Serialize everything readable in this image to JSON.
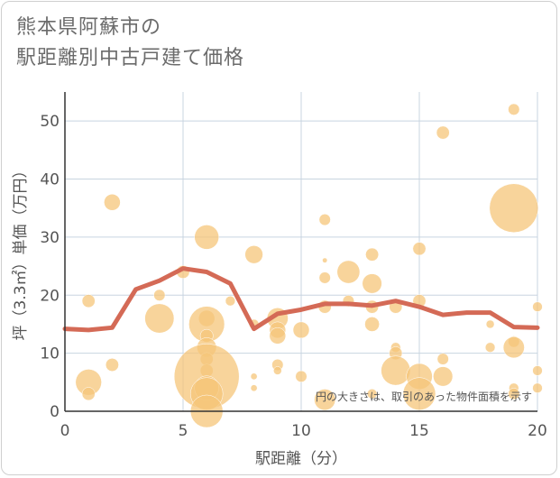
{
  "title_line1": "熊本県阿蘇市の",
  "title_line2": "駅距離別中古戸建て価格",
  "chart_data": {
    "type": "scatter",
    "title": "熊本県阿蘇市の駅距離別中古戸建て価格",
    "xlabel": "駅距離（分）",
    "ylabel": "坪（3.3㎡）単価（万円）",
    "xlim": [
      0,
      20
    ],
    "ylim": [
      0,
      55
    ],
    "xticks": [
      0,
      5,
      10,
      15,
      20
    ],
    "yticks": [
      0,
      10,
      20,
      30,
      40,
      50
    ],
    "grid": true,
    "annotation": "円の大きさは、取引のあった物件面積を示す",
    "colors": {
      "bubble": "#f5c57a",
      "line": "#d46a56",
      "grid": "#c8d4e0",
      "axis": "#333333"
    },
    "bubbles": [
      {
        "x": 1,
        "y": 19,
        "s": 0.8
      },
      {
        "x": 1,
        "y": 5,
        "s": 1.6
      },
      {
        "x": 1,
        "y": 3,
        "s": 0.8
      },
      {
        "x": 2,
        "y": 36,
        "s": 1.0
      },
      {
        "x": 2,
        "y": 8,
        "s": 0.8
      },
      {
        "x": 4,
        "y": 20,
        "s": 0.7
      },
      {
        "x": 4,
        "y": 16,
        "s": 1.8
      },
      {
        "x": 5,
        "y": 24,
        "s": 0.8
      },
      {
        "x": 6,
        "y": 30,
        "s": 1.5
      },
      {
        "x": 6,
        "y": 16,
        "s": 1.0
      },
      {
        "x": 6,
        "y": 15,
        "s": 2.2
      },
      {
        "x": 6,
        "y": 13,
        "s": 0.8
      },
      {
        "x": 6,
        "y": 11,
        "s": 1.2
      },
      {
        "x": 6,
        "y": 9,
        "s": 0.8
      },
      {
        "x": 6,
        "y": 7,
        "s": 0.8
      },
      {
        "x": 6,
        "y": 6,
        "s": 4.0
      },
      {
        "x": 6,
        "y": 4,
        "s": 1.5
      },
      {
        "x": 6,
        "y": 3,
        "s": 2.0
      },
      {
        "x": 6,
        "y": 0,
        "s": 2.0
      },
      {
        "x": 7,
        "y": 19,
        "s": 0.6
      },
      {
        "x": 8,
        "y": 27,
        "s": 1.1
      },
      {
        "x": 8,
        "y": 15,
        "s": 0.6
      },
      {
        "x": 8,
        "y": 6,
        "s": 0.4
      },
      {
        "x": 8,
        "y": 4,
        "s": 0.4
      },
      {
        "x": 9,
        "y": 16,
        "s": 1.3
      },
      {
        "x": 9,
        "y": 14,
        "s": 1.0
      },
      {
        "x": 9,
        "y": 13,
        "s": 1.0
      },
      {
        "x": 9,
        "y": 8,
        "s": 0.7
      },
      {
        "x": 9,
        "y": 7,
        "s": 0.5
      },
      {
        "x": 10,
        "y": 14,
        "s": 1.0
      },
      {
        "x": 10,
        "y": 6,
        "s": 0.7
      },
      {
        "x": 11,
        "y": 33,
        "s": 0.7
      },
      {
        "x": 11,
        "y": 26,
        "s": 0.3
      },
      {
        "x": 11,
        "y": 23,
        "s": 0.7
      },
      {
        "x": 11,
        "y": 18,
        "s": 0.8
      },
      {
        "x": 11,
        "y": 2,
        "s": 1.3
      },
      {
        "x": 12,
        "y": 24,
        "s": 1.4
      },
      {
        "x": 12,
        "y": 19,
        "s": 0.7
      },
      {
        "x": 13,
        "y": 27,
        "s": 0.8
      },
      {
        "x": 13,
        "y": 22,
        "s": 1.2
      },
      {
        "x": 13,
        "y": 18,
        "s": 0.8
      },
      {
        "x": 13,
        "y": 15,
        "s": 0.9
      },
      {
        "x": 13,
        "y": 3,
        "s": 0.6
      },
      {
        "x": 14,
        "y": 18,
        "s": 0.8
      },
      {
        "x": 14,
        "y": 11,
        "s": 0.6
      },
      {
        "x": 14,
        "y": 10,
        "s": 0.8
      },
      {
        "x": 14,
        "y": 7,
        "s": 1.8
      },
      {
        "x": 15,
        "y": 28,
        "s": 0.8
      },
      {
        "x": 15,
        "y": 19,
        "s": 0.8
      },
      {
        "x": 15,
        "y": 6,
        "s": 1.6
      },
      {
        "x": 15,
        "y": 3,
        "s": 2.0
      },
      {
        "x": 16,
        "y": 48,
        "s": 0.8
      },
      {
        "x": 16,
        "y": 9,
        "s": 0.7
      },
      {
        "x": 16,
        "y": 6,
        "s": 1.2
      },
      {
        "x": 18,
        "y": 15,
        "s": 0.5
      },
      {
        "x": 18,
        "y": 11,
        "s": 0.6
      },
      {
        "x": 19,
        "y": 52,
        "s": 0.7
      },
      {
        "x": 19,
        "y": 35,
        "s": 3.0
      },
      {
        "x": 19,
        "y": 12,
        "s": 0.7
      },
      {
        "x": 19,
        "y": 11,
        "s": 1.3
      },
      {
        "x": 19,
        "y": 4,
        "s": 0.6
      },
      {
        "x": 19,
        "y": 3,
        "s": 0.7
      },
      {
        "x": 20,
        "y": 18,
        "s": 0.6
      },
      {
        "x": 20,
        "y": 7,
        "s": 0.6
      },
      {
        "x": 20,
        "y": 4,
        "s": 0.6
      }
    ],
    "trend": {
      "x": [
        0,
        1,
        2,
        3,
        4,
        5,
        6,
        7,
        8,
        9,
        10,
        11,
        12,
        13,
        14,
        15,
        16,
        17,
        18,
        19,
        20
      ],
      "y": [
        14.2,
        14.0,
        14.4,
        21.0,
        22.5,
        24.6,
        24.0,
        22.0,
        14.2,
        16.8,
        17.5,
        18.5,
        18.5,
        18.2,
        19.0,
        18.0,
        16.6,
        17.0,
        17.0,
        14.5,
        14.4
      ]
    }
  }
}
